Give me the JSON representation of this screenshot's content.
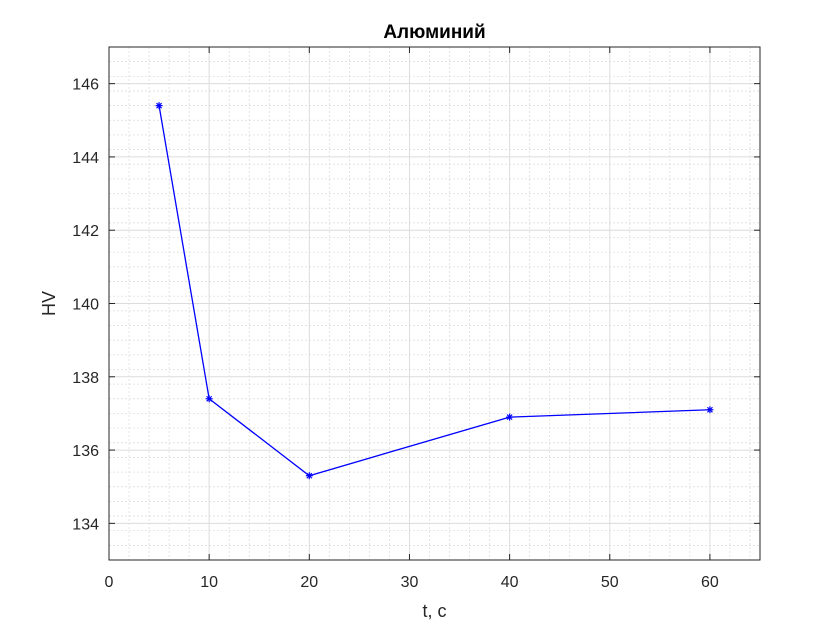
{
  "chart_data": {
    "type": "line",
    "title": "Алюминий",
    "xlabel": "t, с",
    "ylabel": "HV",
    "xlim": [
      0,
      65
    ],
    "ylim": [
      133,
      147
    ],
    "xticks": [
      0,
      10,
      20,
      30,
      40,
      50,
      60
    ],
    "yticks": [
      134,
      136,
      138,
      140,
      142,
      144,
      146
    ],
    "xtick_labels": [
      "0",
      "10",
      "20",
      "30",
      "40",
      "50",
      "60"
    ],
    "ytick_labels": [
      "134",
      "136",
      "138",
      "140",
      "142",
      "144",
      "146"
    ],
    "grid": true,
    "minor_grid": true,
    "marker": "asterisk",
    "series": [
      {
        "color": "#0000ff",
        "x": [
          5,
          10,
          20,
          40,
          60
        ],
        "y": [
          145.4,
          137.4,
          135.3,
          136.9,
          137.1
        ]
      }
    ]
  }
}
